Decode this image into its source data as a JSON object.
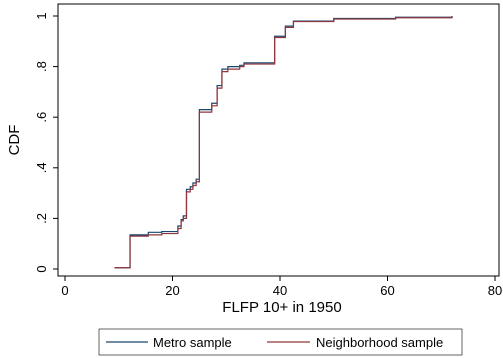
{
  "chart_data": {
    "type": "line",
    "xlabel": "FLFP 10+ in 1950",
    "ylabel": "CDF",
    "xlim": [
      0,
      80
    ],
    "ylim": [
      0,
      1
    ],
    "x_ticks": [
      0,
      20,
      40,
      60,
      80
    ],
    "x_tick_labels": [
      "0",
      "20",
      "40",
      "60",
      "80"
    ],
    "y_ticks": [
      0,
      0.2,
      0.4,
      0.6,
      0.8,
      1
    ],
    "y_tick_labels": [
      "0",
      ".2",
      ".4",
      ".6",
      ".8",
      "1"
    ],
    "grid": false,
    "legend_position": "bottom",
    "series": [
      {
        "name": "Metro sample",
        "color": "#1a476f",
        "points": [
          [
            9.2,
            0.005
          ],
          [
            12.1,
            0.005
          ],
          [
            12.1,
            0.135
          ],
          [
            15.5,
            0.135
          ],
          [
            15.5,
            0.145
          ],
          [
            18.0,
            0.145
          ],
          [
            18.0,
            0.148
          ],
          [
            21.0,
            0.148
          ],
          [
            21.0,
            0.17
          ],
          [
            21.6,
            0.17
          ],
          [
            21.6,
            0.195
          ],
          [
            22.0,
            0.195
          ],
          [
            22.0,
            0.21
          ],
          [
            22.6,
            0.21
          ],
          [
            22.6,
            0.315
          ],
          [
            23.3,
            0.315
          ],
          [
            23.3,
            0.325
          ],
          [
            23.8,
            0.325
          ],
          [
            23.8,
            0.34
          ],
          [
            24.4,
            0.34
          ],
          [
            24.4,
            0.355
          ],
          [
            25.0,
            0.355
          ],
          [
            25.0,
            0.63
          ],
          [
            27.3,
            0.63
          ],
          [
            27.3,
            0.655
          ],
          [
            28.3,
            0.655
          ],
          [
            28.3,
            0.725
          ],
          [
            29.2,
            0.725
          ],
          [
            29.2,
            0.79
          ],
          [
            30.3,
            0.79
          ],
          [
            30.3,
            0.8
          ],
          [
            32.5,
            0.8
          ],
          [
            32.5,
            0.805
          ],
          [
            33.3,
            0.805
          ],
          [
            33.3,
            0.815
          ],
          [
            39.0,
            0.815
          ],
          [
            39.0,
            0.92
          ],
          [
            41.0,
            0.92
          ],
          [
            41.0,
            0.96
          ],
          [
            42.5,
            0.96
          ],
          [
            42.5,
            0.98
          ],
          [
            50.0,
            0.98
          ],
          [
            50.0,
            0.99
          ],
          [
            61.5,
            0.99
          ],
          [
            61.5,
            0.995
          ],
          [
            72.0,
            0.995
          ],
          [
            72.0,
            1.0
          ]
        ]
      },
      {
        "name": "Neighborhood sample",
        "color": "#90353b",
        "points": [
          [
            9.2,
            0.005
          ],
          [
            12.1,
            0.005
          ],
          [
            12.1,
            0.13
          ],
          [
            15.5,
            0.13
          ],
          [
            15.5,
            0.135
          ],
          [
            18.0,
            0.135
          ],
          [
            18.0,
            0.14
          ],
          [
            21.0,
            0.14
          ],
          [
            21.0,
            0.16
          ],
          [
            21.6,
            0.16
          ],
          [
            21.6,
            0.19
          ],
          [
            22.0,
            0.19
          ],
          [
            22.0,
            0.2
          ],
          [
            22.6,
            0.2
          ],
          [
            22.6,
            0.305
          ],
          [
            23.3,
            0.305
          ],
          [
            23.3,
            0.315
          ],
          [
            23.8,
            0.315
          ],
          [
            23.8,
            0.33
          ],
          [
            24.4,
            0.33
          ],
          [
            24.4,
            0.345
          ],
          [
            25.0,
            0.345
          ],
          [
            25.0,
            0.62
          ],
          [
            27.3,
            0.62
          ],
          [
            27.3,
            0.645
          ],
          [
            28.3,
            0.645
          ],
          [
            28.3,
            0.715
          ],
          [
            29.2,
            0.715
          ],
          [
            29.2,
            0.78
          ],
          [
            30.3,
            0.78
          ],
          [
            30.3,
            0.79
          ],
          [
            32.5,
            0.79
          ],
          [
            32.5,
            0.8
          ],
          [
            33.3,
            0.8
          ],
          [
            33.3,
            0.81
          ],
          [
            39.0,
            0.81
          ],
          [
            39.0,
            0.915
          ],
          [
            41.0,
            0.915
          ],
          [
            41.0,
            0.955
          ],
          [
            42.5,
            0.955
          ],
          [
            42.5,
            0.978
          ],
          [
            50.0,
            0.978
          ],
          [
            50.0,
            0.988
          ],
          [
            61.5,
            0.988
          ],
          [
            61.5,
            0.993
          ],
          [
            72.0,
            0.993
          ],
          [
            72.0,
            1.0
          ]
        ]
      }
    ]
  }
}
